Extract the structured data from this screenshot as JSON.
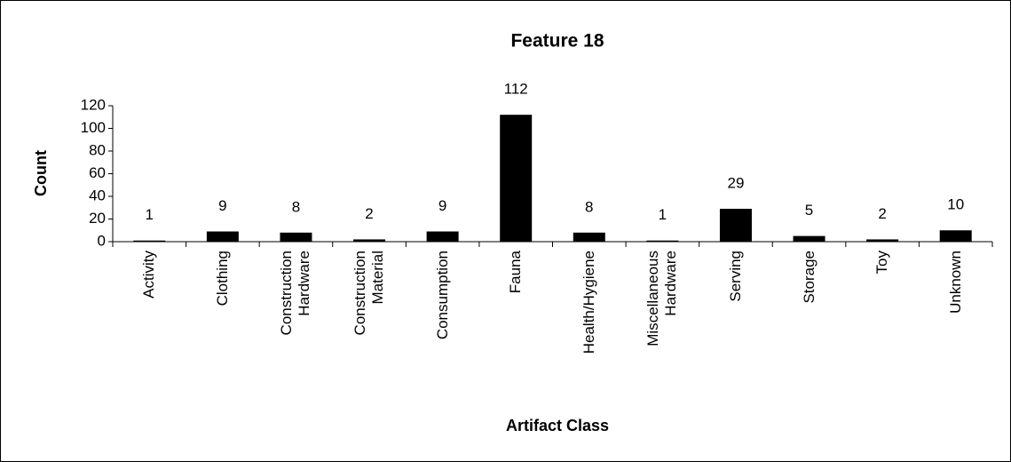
{
  "chart_data": {
    "type": "bar",
    "title": "Feature 18",
    "x_label": "Artifact Class",
    "y_label": "Count",
    "categories": [
      "Activity",
      "Clothing",
      "Construction Hardware",
      "Construction Material",
      "Consumption",
      "Fauna",
      "Health/Hygiene",
      "Miscellaneous Hardware",
      "Serving",
      "Storage",
      "Toy",
      "Unknown"
    ],
    "values": [
      1,
      9,
      8,
      2,
      9,
      112,
      8,
      1,
      29,
      5,
      2,
      10
    ],
    "color": "#000000",
    "ylim": [
      0,
      120
    ],
    "yticks": [
      0,
      20,
      40,
      60,
      80,
      100,
      120
    ],
    "grid": false
  }
}
